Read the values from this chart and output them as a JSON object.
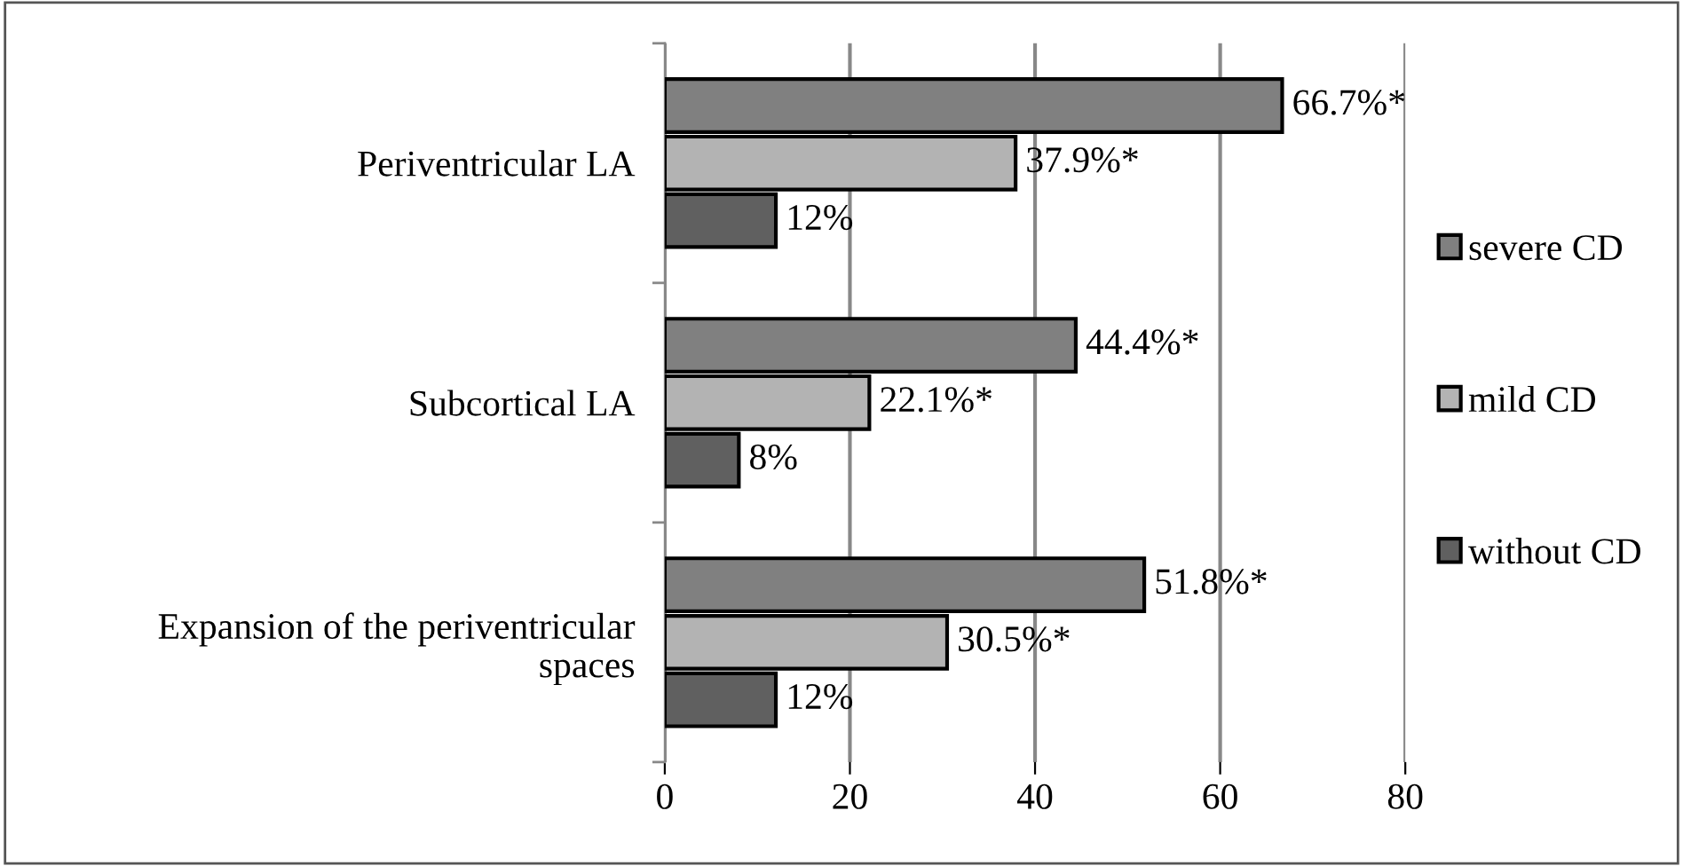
{
  "chart_data": {
    "type": "bar",
    "orientation": "horizontal",
    "categories": [
      "Periventricular LA",
      "Subcortical LA",
      "Expansion of the periventricular\nspaces"
    ],
    "series": [
      {
        "name": "severe CD",
        "color": "#808080",
        "values": [
          66.7,
          44.4,
          51.8
        ],
        "value_labels": [
          "66.7%*",
          "44.4%*",
          "51.8%*"
        ]
      },
      {
        "name": "mild CD",
        "color": "#b3b3b3",
        "values": [
          37.9,
          22.1,
          30.5
        ],
        "value_labels": [
          "37.9%*",
          "22.1%*",
          "30.5%*"
        ]
      },
      {
        "name": "without CD",
        "color": "#606060",
        "values": [
          12,
          8,
          12
        ],
        "value_labels": [
          "12%",
          "8%",
          "12%"
        ]
      }
    ],
    "xlim": [
      0,
      80
    ],
    "xticks": [
      0,
      20,
      40,
      60,
      80
    ],
    "grid": "x",
    "legend": "right"
  }
}
